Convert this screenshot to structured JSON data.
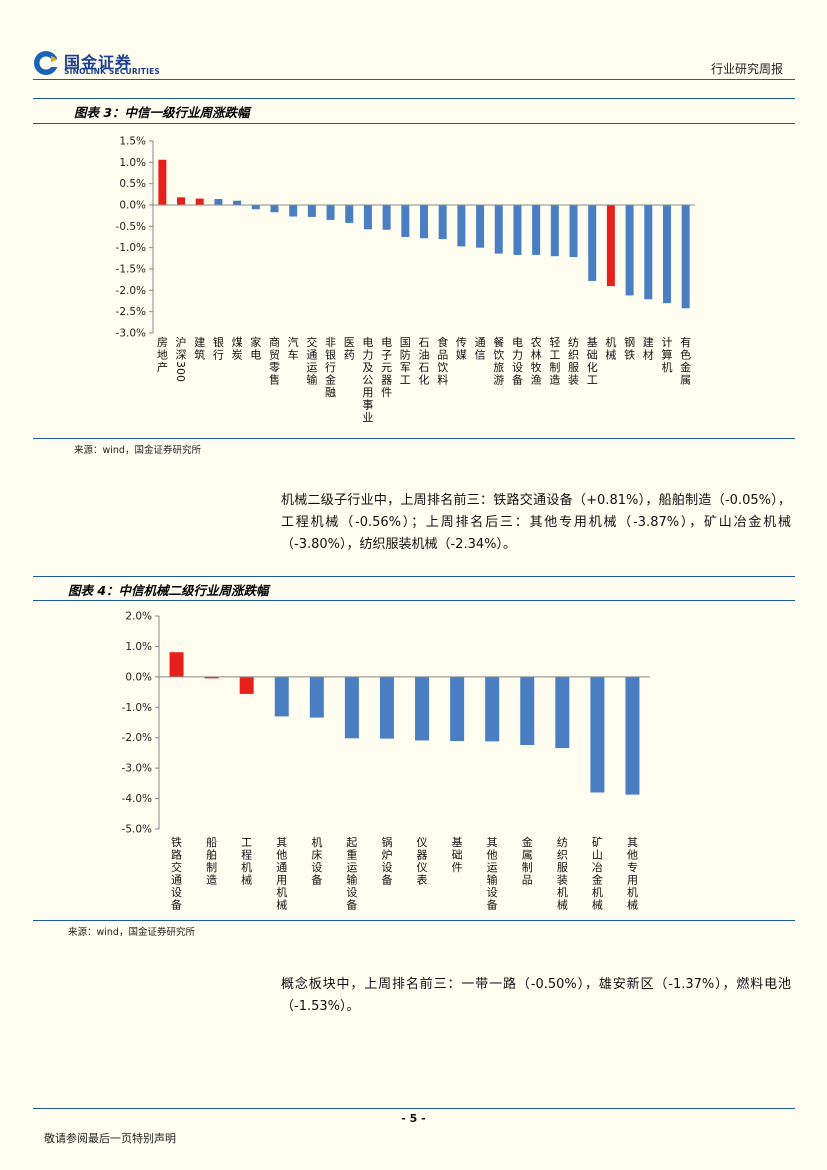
{
  "header": {
    "logo_cn": "国金证券",
    "logo_en": "SINOLINK SECURITIES",
    "report_type": "行业研究周报"
  },
  "figure3": {
    "title": "图表 3：中信一级行业周涨跌幅",
    "source": "来源：wind，国金证券研究所"
  },
  "paragraph1": {
    "text": "机械二级子行业中，上周排名前三：铁路交通设备（+0.81%），船舶制造（-0.05%），工程机械（-0.56%）；上周排名后三：其他专用机械（-3.87%），矿山冶金机械（-3.80%），纺织服装机械（-2.34%）。"
  },
  "figure4": {
    "title": "图表 4：中信机械二级行业周涨跌幅",
    "source": "来源：wind，国金证券研究所"
  },
  "paragraph2": {
    "text": "概念板块中，上周排名前三：一带一路（-0.50%），雄安新区（-1.37%），燃料电池（-1.53%）。"
  },
  "footer": {
    "page_number": "- 5 -",
    "disclaimer": "敬请参阅最后一页特别声明"
  },
  "colors": {
    "positive_bar": "#e8201c",
    "highlight_bar": "#e8201c",
    "negative_bar": "#4a7ec2",
    "rule": "#1f5a99"
  },
  "chart_data": [
    {
      "type": "bar",
      "title": "图表 3：中信一级行业周涨跌幅",
      "xlabel": "",
      "ylabel": "",
      "ylim": [
        -3.0,
        1.5
      ],
      "yticks": [
        "1.5%",
        "1.0%",
        "0.5%",
        "0.0%",
        "-0.5%",
        "-1.0%",
        "-1.5%",
        "-2.0%",
        "-2.5%",
        "-3.0%"
      ],
      "categories": [
        "房地产",
        "沪深300",
        "建筑",
        "银行",
        "煤炭",
        "家电",
        "商贸零售",
        "汽车",
        "交通运输",
        "非银行金融",
        "医药",
        "电力及公用事业",
        "电子元器件",
        "国防军工",
        "石油石化",
        "食品饮料",
        "传媒",
        "通信",
        "餐饮旅游",
        "电力设备",
        "农林牧渔",
        "轻工制造",
        "纺织服装",
        "基础化工",
        "机械",
        "钢铁",
        "建材",
        "计算机",
        "有色金属"
      ],
      "values": [
        1.06,
        0.18,
        0.15,
        0.14,
        0.1,
        -0.1,
        -0.17,
        -0.27,
        -0.28,
        -0.35,
        -0.42,
        -0.57,
        -0.58,
        -0.75,
        -0.78,
        -0.8,
        -0.97,
        -1.0,
        -1.14,
        -1.17,
        -1.17,
        -1.2,
        -1.22,
        -1.78,
        -1.9,
        -2.12,
        -2.21,
        -2.3,
        -2.42
      ],
      "red_indices": [
        0,
        1,
        2,
        24
      ],
      "grid": false
    },
    {
      "type": "bar",
      "title": "图表 4：中信机械二级行业周涨跌幅",
      "xlabel": "",
      "ylabel": "",
      "ylim": [
        -5.0,
        2.0
      ],
      "yticks": [
        "2.0%",
        "1.0%",
        "0.0%",
        "-1.0%",
        "-2.0%",
        "-3.0%",
        "-4.0%",
        "-5.0%"
      ],
      "categories": [
        "铁路交通设备",
        "船舶制造",
        "工程机械",
        "其他通用机械",
        "机床设备",
        "起重运输设备",
        "锅炉设备",
        "仪器仪表",
        "基础件",
        "其他运输设备",
        "金属制品",
        "纺织服装机械",
        "矿山冶金机械",
        "其他专用机械"
      ],
      "values": [
        0.81,
        -0.05,
        -0.56,
        -1.3,
        -1.34,
        -2.02,
        -2.03,
        -2.09,
        -2.11,
        -2.12,
        -2.24,
        -2.34,
        -3.8,
        -3.87
      ],
      "red_indices": [
        0,
        1,
        2
      ],
      "grid": false
    }
  ]
}
